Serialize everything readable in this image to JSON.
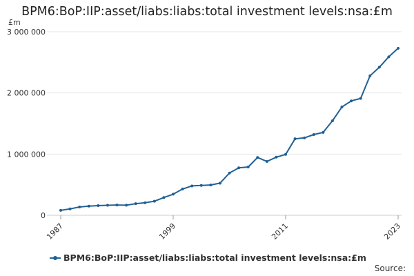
{
  "chart_data": {
    "type": "line",
    "title": "BPM6:BoP:IIP:asset/liabs:liabs:total investment levels:nsa:£m",
    "ylabel": "£m",
    "xlabel": "",
    "ylim": [
      0,
      3000000
    ],
    "yticks": [
      0,
      1000000,
      2000000,
      3000000
    ],
    "ytick_labels": [
      "0",
      "1 000 000",
      "2 000 000",
      "3 000 000"
    ],
    "xlim": [
      1987,
      2023
    ],
    "xticks": [
      1987,
      1999,
      2011,
      2023
    ],
    "xtick_labels": [
      "1987",
      "1999",
      "2011",
      "2023"
    ],
    "grid": true,
    "legend": "bottom",
    "series": [
      {
        "name": "BPM6:BoP:IIP:asset/liabs:liabs:total investment levels:nsa:£m",
        "color": "#206095",
        "x": [
          1987,
          1988,
          1989,
          1990,
          1991,
          1992,
          1993,
          1994,
          1995,
          1996,
          1997,
          1998,
          1999,
          2000,
          2001,
          2002,
          2003,
          2004,
          2005,
          2006,
          2007,
          2008,
          2009,
          2010,
          2011,
          2012,
          2013,
          2014,
          2015,
          2016,
          2017,
          2018,
          2019,
          2020,
          2021,
          2022,
          2023
        ],
        "values": [
          80000,
          105000,
          135000,
          150000,
          158000,
          163000,
          168000,
          165000,
          190000,
          205000,
          230000,
          290000,
          345000,
          430000,
          480000,
          488000,
          495000,
          525000,
          690000,
          775000,
          790000,
          945000,
          880000,
          950000,
          995000,
          1250000,
          1265000,
          1320000,
          1355000,
          1545000,
          1770000,
          1870000,
          1910000,
          2280000,
          2420000,
          2590000,
          2730000
        ]
      }
    ]
  },
  "legend_label": "BPM6:BoP:IIP:asset/liabs:liabs:total investment levels:nsa:£m",
  "source_label": "Source:"
}
